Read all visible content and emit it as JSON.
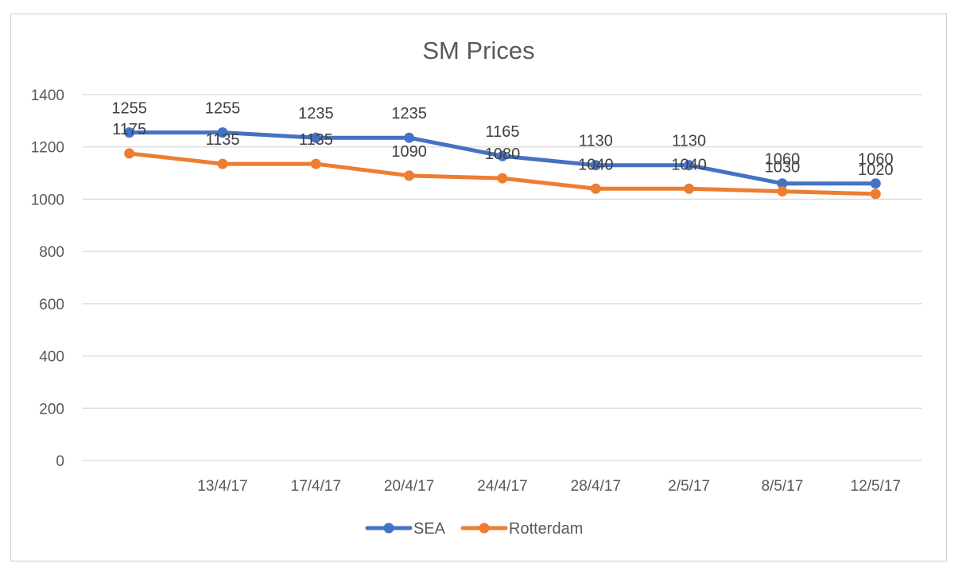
{
  "chart_data": {
    "type": "line",
    "title": "SM Prices",
    "categories": [
      "",
      "13/4/17",
      "17/4/17",
      "20/4/17",
      "24/4/17",
      "28/4/17",
      "2/5/17",
      "8/5/17",
      "12/5/17"
    ],
    "series": [
      {
        "name": "SEA",
        "color": "#4472C4",
        "values": [
          1255,
          1255,
          1235,
          1235,
          1165,
          1130,
          1130,
          1060,
          1060
        ]
      },
      {
        "name": "Rotterdam",
        "color": "#ED7D31",
        "values": [
          1175,
          1135,
          1135,
          1090,
          1080,
          1040,
          1040,
          1030,
          1020
        ]
      }
    ],
    "ylim": [
      0,
      1400
    ],
    "yticks": [
      0,
      200,
      400,
      600,
      800,
      1000,
      1200,
      1400
    ],
    "grid": true,
    "legend": "bottom",
    "data_labels": true
  }
}
